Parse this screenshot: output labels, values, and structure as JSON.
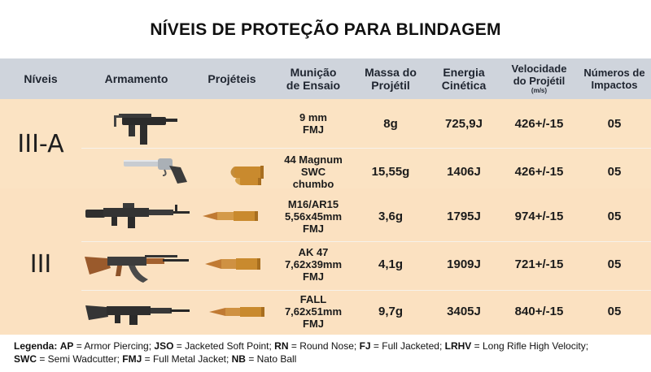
{
  "title": "NÍVEIS DE PROTEÇÃO PARA BLINDAGEM",
  "headers": {
    "niveis": "Níveis",
    "armamento": "Armamento",
    "projeteis": "Projéteis",
    "municao_1": "Munição",
    "municao_2": "de Ensaio",
    "massa_1": "Massa do",
    "massa_2": "Projétil",
    "energia_1": "Energia",
    "energia_2": "Cinética",
    "velocidade_1": "Velocidade",
    "velocidade_2": "do Projétil",
    "velocidade_unit": "(m/s)",
    "impactos_1": "Números de",
    "impactos_2": "Impactos"
  },
  "levels": [
    "III-A",
    "III"
  ],
  "rows": [
    {
      "level": "III-A",
      "weapon": "uzi-submachine-gun",
      "municao": [
        "9 mm",
        "FMJ"
      ],
      "massa": "8g",
      "energia": "725,9J",
      "velocidade": "426+/-15",
      "impactos": "05"
    },
    {
      "level": "III-A",
      "weapon": "magnum-revolver",
      "municao": [
        "44 Magnum",
        "SWC",
        "chumbo"
      ],
      "massa": "15,55g",
      "energia": "1406J",
      "velocidade": "426+/-15",
      "impactos": "05"
    },
    {
      "level": "III",
      "weapon": "m16-rifle",
      "municao": [
        "M16/AR15",
        "5,56x45mm",
        "FMJ"
      ],
      "massa": "3,6g",
      "energia": "1795J",
      "velocidade": "974+/-15",
      "impactos": "05"
    },
    {
      "level": "III",
      "weapon": "ak47-rifle",
      "municao": [
        "AK 47",
        "7,62x39mm",
        "FMJ"
      ],
      "massa": "4,1g",
      "energia": "1909J",
      "velocidade": "721+/-15",
      "impactos": "05"
    },
    {
      "level": "III",
      "weapon": "fal-rifle",
      "municao": [
        "FALL",
        "7,62x51mm",
        "FMJ"
      ],
      "massa": "9,7g",
      "energia": "3405J",
      "velocidade": "840+/-15",
      "impactos": "05"
    }
  ],
  "legend": {
    "prefix": "Legenda:",
    "items": [
      {
        "abbr": "AP",
        "text": " = Armor Piercing; "
      },
      {
        "abbr": "JSO",
        "text": " = Jacketed Soft Point; "
      },
      {
        "abbr": "RN",
        "text": " = Round Nose; "
      },
      {
        "abbr": "FJ",
        "text": " = Full Jacketed; "
      },
      {
        "abbr": "LRHV",
        "text": " = Long Rifle High Velocity;"
      },
      {
        "abbr": "SWC",
        "text": " = Semi Wadcutter; "
      },
      {
        "abbr": "FMJ",
        "text": " = Full Metal Jacket; "
      },
      {
        "abbr": "NB",
        "text": " = Nato Ball"
      }
    ]
  },
  "colors": {
    "header_bg": "#cfd4dc",
    "band_bg": "#fbe3c3",
    "bullet_brass": "#c98a2e"
  }
}
